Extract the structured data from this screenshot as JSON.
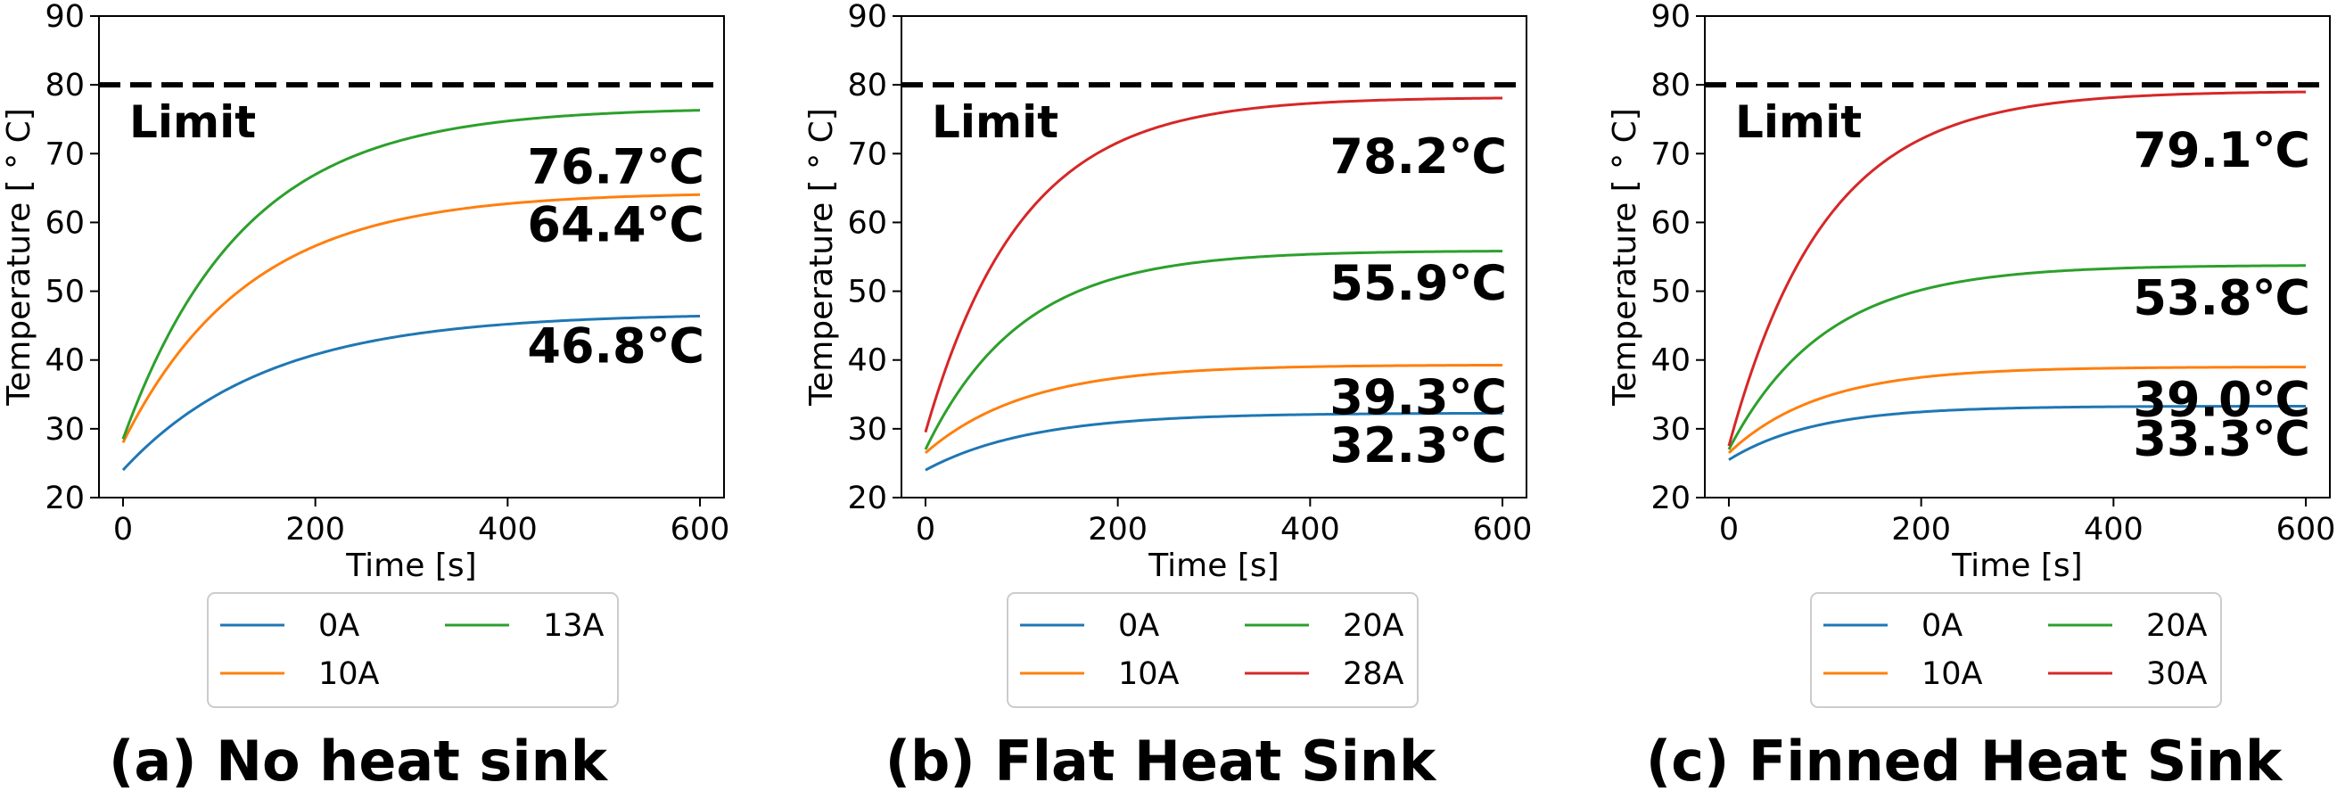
{
  "chart_data": [
    {
      "type": "line",
      "caption": "(a) No heat sink",
      "xlabel": "Time [s]",
      "ylabel": "Temperature [ ° C]",
      "xlim": [
        -25,
        625
      ],
      "ylim": [
        20,
        90
      ],
      "xticks": [
        0,
        200,
        400,
        600
      ],
      "yticks": [
        20,
        30,
        40,
        50,
        60,
        70,
        80,
        90
      ],
      "limit": {
        "value": 80,
        "label": "Limit"
      },
      "legend": {
        "position": "below",
        "columns": 2
      },
      "series": [
        {
          "name": "0A",
          "color": "#1f77b4",
          "start": 24.0,
          "end": 46.8,
          "tau": 150,
          "end_label": "46.8℃"
        },
        {
          "name": "10A",
          "color": "#ff7f0e",
          "start": 28.0,
          "end": 64.4,
          "tau": 130,
          "end_label": "64.4℃"
        },
        {
          "name": "13A",
          "color": "#2ca02c",
          "start": 28.5,
          "end": 76.7,
          "tau": 125,
          "end_label": "76.7℃"
        }
      ]
    },
    {
      "type": "line",
      "caption": "(b) Flat Heat Sink",
      "xlabel": "Time [s]",
      "ylabel": "Temperature [ ° C]",
      "xlim": [
        -25,
        625
      ],
      "ylim": [
        20,
        90
      ],
      "xticks": [
        0,
        200,
        400,
        600
      ],
      "yticks": [
        20,
        30,
        40,
        50,
        60,
        70,
        80,
        90
      ],
      "limit": {
        "value": 80,
        "label": "Limit"
      },
      "legend": {
        "position": "below",
        "columns": 2
      },
      "series": [
        {
          "name": "0A",
          "color": "#1f77b4",
          "start": 24.0,
          "end": 32.3,
          "tau": 110,
          "end_label": "32.3℃"
        },
        {
          "name": "10A",
          "color": "#ff7f0e",
          "start": 26.5,
          "end": 39.3,
          "tau": 105,
          "end_label": "39.3℃"
        },
        {
          "name": "20A",
          "color": "#2ca02c",
          "start": 27.0,
          "end": 55.9,
          "tau": 100,
          "end_label": "55.9℃"
        },
        {
          "name": "28A",
          "color": "#d62728",
          "start": 29.5,
          "end": 78.2,
          "tau": 100,
          "end_label": "78.2℃"
        }
      ]
    },
    {
      "type": "line",
      "caption": "(c) Finned Heat Sink",
      "xlabel": "Time [s]",
      "ylabel": "Temperature [ ° C]",
      "xlim": [
        -25,
        625
      ],
      "ylim": [
        20,
        90
      ],
      "xticks": [
        0,
        200,
        400,
        600
      ],
      "yticks": [
        20,
        30,
        40,
        50,
        60,
        70,
        80,
        90
      ],
      "limit": {
        "value": 80,
        "label": "Limit"
      },
      "legend": {
        "position": "below",
        "columns": 2
      },
      "series": [
        {
          "name": "0A",
          "color": "#1f77b4",
          "start": 25.5,
          "end": 33.3,
          "tau": 90,
          "end_label": "33.3℃"
        },
        {
          "name": "10A",
          "color": "#ff7f0e",
          "start": 26.5,
          "end": 39.0,
          "tau": 95,
          "end_label": "39.0℃"
        },
        {
          "name": "20A",
          "color": "#2ca02c",
          "start": 27.0,
          "end": 53.8,
          "tau": 100,
          "end_label": "53.8℃"
        },
        {
          "name": "30A",
          "color": "#d62728",
          "start": 27.5,
          "end": 79.1,
          "tau": 100,
          "end_label": "79.1℃"
        }
      ]
    }
  ]
}
